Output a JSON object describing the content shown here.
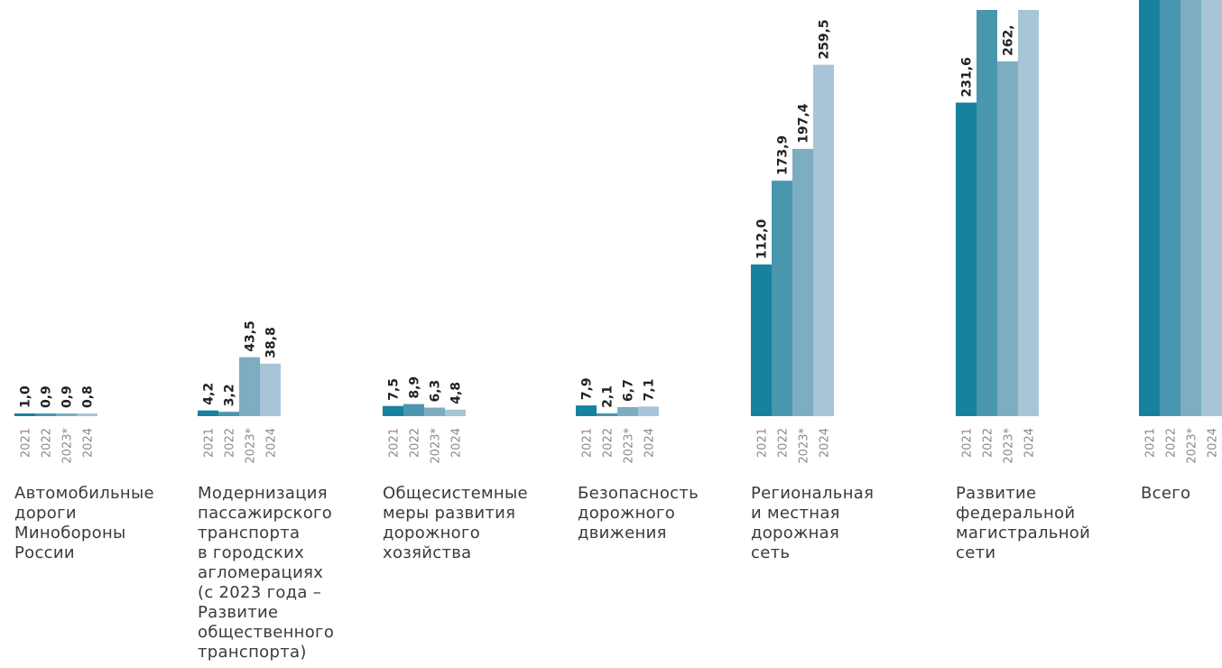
{
  "chart_data": {
    "type": "bar",
    "years": [
      "2021",
      "2022",
      "2023*",
      "2024"
    ],
    "series_colors": [
      "#17829e",
      "#4a96ae",
      "#7eadc1",
      "#a7c5d6"
    ],
    "groups": [
      {
        "label": "Автомобильные\nдороги\nМинобороны\nРоссии",
        "values": [
          1.0,
          0.9,
          0.9,
          0.8
        ],
        "value_labels": [
          "1,0",
          "0,9",
          "0,9",
          "0,8"
        ]
      },
      {
        "label": "Модернизация\nпассажирского\nтранспорта\nв городских\nагломерациях\n(с 2023 года –\nРазвитие\nобщественного\nтранспорта)",
        "values": [
          4.2,
          3.2,
          43.5,
          38.8
        ],
        "value_labels": [
          "4,2",
          "3,2",
          "43,5",
          "38,8"
        ]
      },
      {
        "label": "Общесистемные\nмеры развития\nдорожного\nхозяйства",
        "values": [
          7.5,
          8.9,
          6.3,
          4.8
        ],
        "value_labels": [
          "7,5",
          "8,9",
          "6,3",
          "4,8"
        ]
      },
      {
        "label": "Безопасность\nдорожного\nдвижения",
        "values": [
          7.9,
          2.1,
          6.7,
          7.1
        ],
        "value_labels": [
          "7,9",
          "2,1",
          "6,7",
          "7,1"
        ]
      },
      {
        "label": "Региональная\nи местная\nдорожная\nсеть",
        "values": [
          112.0,
          173.9,
          197.4,
          259.5
        ],
        "value_labels": [
          "112,0",
          "173,9",
          "197,4",
          "259,5"
        ]
      },
      {
        "label": "Развитие\nфедеральной\nмагистральной\nсети",
        "values": [
          231.6,
          300,
          262.0,
          300
        ],
        "value_labels": [
          "231,6",
          "",
          "262,",
          ""
        ]
      },
      {
        "label": "Всего",
        "values": [
          400,
          400,
          400,
          400
        ],
        "value_labels": [
          "",
          "",
          "",
          ""
        ]
      }
    ]
  }
}
